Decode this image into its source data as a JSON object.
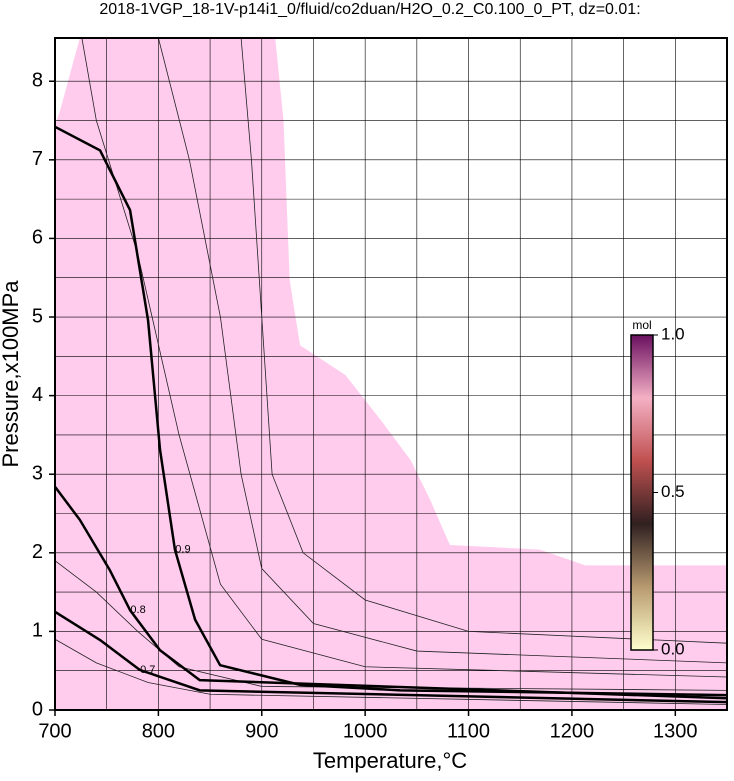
{
  "chart_data": {
    "type": "contour",
    "title": "2018-1VGP_18-1V-p14i1_0/fluid/co2duan/H2O_0.2_C0.100_0_PT, dz=0.01:",
    "x_label": "Temperature,°C",
    "y_label": "Pressure,x100MPa",
    "xlim": [
      700,
      1350
    ],
    "ylim": [
      0,
      8.55
    ],
    "xticks": [
      700,
      800,
      900,
      1000,
      1100,
      1200,
      1300
    ],
    "yticks": [
      0,
      1,
      2,
      3,
      4,
      5,
      6,
      7,
      8
    ],
    "xgrid": [
      700,
      750,
      800,
      850,
      900,
      950,
      1000,
      1050,
      1100,
      1150,
      1200,
      1250,
      1300,
      1350
    ],
    "ygrid": [
      0,
      0.5,
      1,
      1.5,
      2,
      2.5,
      3,
      3.5,
      4,
      4.5,
      5,
      5.5,
      6,
      6.5,
      7,
      7.5,
      8
    ],
    "region": {
      "color": "#ffccee",
      "x": [
        724,
        705,
        700,
        700,
        1350,
        1350,
        1213,
        1169,
        1082,
        1063,
        1044,
        1015,
        981,
        937,
        927,
        921,
        913
      ],
      "y": [
        8.55,
        7.63,
        7.44,
        0,
        0,
        1.84,
        1.84,
        2.04,
        2.1,
        2.67,
        3.18,
        3.69,
        4.26,
        4.64,
        5.47,
        7.51,
        8.55
      ]
    },
    "contours": [
      {
        "level": 0.9,
        "x": [
          700,
          743.6,
          772.6,
          790,
          801.6,
          816,
          835.5,
          859.7,
          937,
          1034,
          1350
        ],
        "y": [
          7.42,
          7.12,
          6.36,
          4.96,
          3.31,
          2.04,
          1.15,
          0.57,
          0.32,
          0.25,
          0.19
        ]
      },
      {
        "level": 0.8,
        "x": [
          700,
          724,
          753,
          772.6,
          801.6,
          840,
          1350
        ],
        "y": [
          2.84,
          2.42,
          1.78,
          1.27,
          0.76,
          0.38,
          0.15
        ]
      },
      {
        "level": 0.7,
        "x": [
          700,
          743.6,
          782,
          840,
          1350
        ],
        "y": [
          1.25,
          0.89,
          0.51,
          0.25,
          0.1
        ]
      }
    ],
    "thin_contours": [
      {
        "x": [
          726,
          740,
          780,
          820,
          860,
          900,
          1000,
          1350
        ],
        "y": [
          8.55,
          7.5,
          5.8,
          3.5,
          1.6,
          0.9,
          0.55,
          0.42
        ]
      },
      {
        "x": [
          800,
          830,
          860,
          880,
          900,
          950,
          1050,
          1350
        ],
        "y": [
          8.55,
          7.0,
          5.0,
          3.0,
          1.8,
          1.1,
          0.75,
          0.6
        ]
      },
      {
        "x": [
          880,
          890,
          900,
          910,
          940,
          1000,
          1100,
          1350
        ],
        "y": [
          8.55,
          7.0,
          5.0,
          3.0,
          2.0,
          1.4,
          1.0,
          0.85
        ]
      },
      {
        "x": [
          700,
          740,
          780,
          820,
          900,
          1350
        ],
        "y": [
          1.9,
          1.5,
          1.0,
          0.55,
          0.3,
          0.25
        ]
      },
      {
        "x": [
          700,
          740,
          790,
          850,
          1350
        ],
        "y": [
          0.9,
          0.6,
          0.35,
          0.2,
          0.07
        ]
      }
    ],
    "colorbar": {
      "label": "mol",
      "lim": [
        0,
        1
      ],
      "ticks": [
        {
          "value": 0,
          "label": "0.0"
        },
        {
          "value": 0.5,
          "label": "0.5"
        },
        {
          "value": 1,
          "label": "1.0"
        }
      ],
      "colors": [
        "#ffffcc",
        "#b89a70",
        "#302020",
        "#c05050",
        "#f4b0c4",
        "#6a1060"
      ]
    }
  }
}
